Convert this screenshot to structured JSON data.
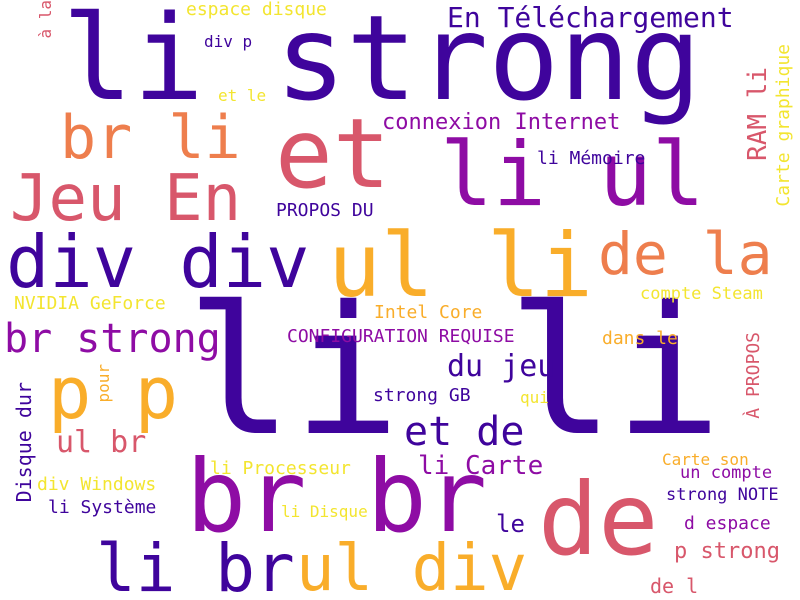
{
  "colors": {
    "c0": "#3f049c",
    "c1": "#8e0ca4",
    "c2": "#d8576b",
    "c3": "#ee7e4d",
    "c4": "#f9ad2a",
    "c5": "#f3e530"
  },
  "words": [
    {
      "text": "li strong",
      "color": "c0"
    },
    {
      "text": "li li",
      "color": "c0"
    },
    {
      "text": "br br",
      "color": "c1"
    },
    {
      "text": "et",
      "color": "c2"
    },
    {
      "text": "li ul",
      "color": "c1"
    },
    {
      "text": "br li",
      "color": "c3"
    },
    {
      "text": "Jeu En",
      "color": "c2"
    },
    {
      "text": "div div",
      "color": "c0"
    },
    {
      "text": "ul li",
      "color": "c4"
    },
    {
      "text": "de la",
      "color": "c3"
    },
    {
      "text": "de",
      "color": "c2"
    },
    {
      "text": "p p",
      "color": "c4"
    },
    {
      "text": "li br",
      "color": "c0"
    },
    {
      "text": "ul div",
      "color": "c4"
    },
    {
      "text": "br strong",
      "color": "c1"
    },
    {
      "text": "En Téléchargement",
      "color": "c0"
    },
    {
      "text": "connexion Internet",
      "color": "c1"
    },
    {
      "text": "et de",
      "color": "c0"
    },
    {
      "text": "du jeu",
      "color": "c0"
    },
    {
      "text": "li Carte",
      "color": "c1"
    },
    {
      "text": "ul br",
      "color": "c2"
    },
    {
      "text": "p strong",
      "color": "c2"
    },
    {
      "text": "li Mémoire",
      "color": "c0"
    },
    {
      "text": "RAM li",
      "color": "c2"
    },
    {
      "text": "Carte graphique",
      "color": "c5"
    },
    {
      "text": "PROPOS DU",
      "color": "c0"
    },
    {
      "text": "NVIDIA GeForce",
      "color": "c5"
    },
    {
      "text": "Intel Core",
      "color": "c4"
    },
    {
      "text": "compte Steam",
      "color": "c5"
    },
    {
      "text": "CONFIGURATION REQUISE",
      "color": "c1"
    },
    {
      "text": "dans le",
      "color": "c4"
    },
    {
      "text": "strong GB",
      "color": "c0"
    },
    {
      "text": "qui",
      "color": "c5"
    },
    {
      "text": "À PROPOS",
      "color": "c2"
    },
    {
      "text": "li Processeur",
      "color": "c5"
    },
    {
      "text": "div Windows",
      "color": "c5"
    },
    {
      "text": "li Système",
      "color": "c0"
    },
    {
      "text": "li Disque",
      "color": "c5"
    },
    {
      "text": "Disque dur",
      "color": "c0"
    },
    {
      "text": "pour",
      "color": "c4"
    },
    {
      "text": "Carte son",
      "color": "c4"
    },
    {
      "text": "un compte",
      "color": "c1"
    },
    {
      "text": "strong NOTE",
      "color": "c0"
    },
    {
      "text": "d espace",
      "color": "c1"
    },
    {
      "text": "le",
      "color": "c0"
    },
    {
      "text": "de l",
      "color": "c2"
    },
    {
      "text": "espace disque",
      "color": "c5"
    },
    {
      "text": "div p",
      "color": "c0"
    },
    {
      "text": "et le",
      "color": "c5"
    },
    {
      "text": "à la",
      "color": "c2"
    }
  ]
}
